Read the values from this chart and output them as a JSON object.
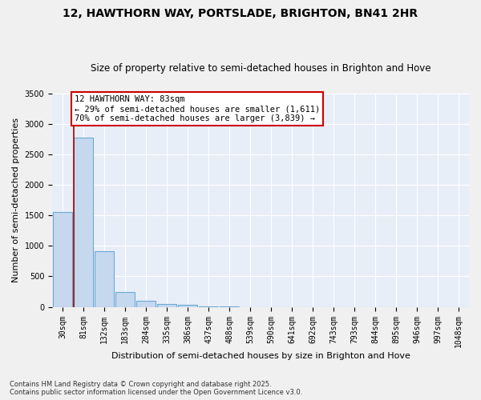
{
  "title1": "12, HAWTHORN WAY, PORTSLADE, BRIGHTON, BN41 2HR",
  "title2": "Size of property relative to semi-detached houses in Brighton and Hove",
  "xlabel": "Distribution of semi-detached houses by size in Brighton and Hove",
  "ylabel": "Number of semi-detached properties",
  "bins": [
    "30sqm",
    "81sqm",
    "132sqm",
    "183sqm",
    "284sqm",
    "335sqm",
    "386sqm",
    "437sqm",
    "488sqm",
    "539sqm",
    "590sqm",
    "641sqm",
    "692sqm",
    "743sqm",
    "793sqm",
    "844sqm",
    "895sqm",
    "946sqm",
    "997sqm",
    "1048sqm"
  ],
  "values": [
    1550,
    2780,
    910,
    240,
    100,
    50,
    35,
    4,
    2,
    1,
    0,
    0,
    0,
    0,
    0,
    0,
    0,
    0,
    0,
    0
  ],
  "bar_color": "#c5d8ee",
  "bar_edge_color": "#6aaad4",
  "ylim": [
    0,
    3500
  ],
  "yticks": [
    0,
    500,
    1000,
    1500,
    2000,
    2500,
    3000,
    3500
  ],
  "annotation_title": "12 HAWTHORN WAY: 83sqm",
  "annotation_line1": "← 29% of semi-detached houses are smaller (1,611)",
  "annotation_line2": "70% of semi-detached houses are larger (3,839) →",
  "annotation_box_color": "#cc0000",
  "property_line_color": "#aa0000",
  "background_color": "#e8eef8",
  "grid_color": "#ffffff",
  "footer1": "Contains HM Land Registry data © Crown copyright and database right 2025.",
  "footer2": "Contains public sector information licensed under the Open Government Licence v3.0.",
  "title1_fontsize": 10,
  "title2_fontsize": 8.5,
  "annotation_fontsize": 7.5,
  "tick_fontsize": 7,
  "ylabel_fontsize": 8,
  "xlabel_fontsize": 8,
  "footer_fontsize": 6
}
